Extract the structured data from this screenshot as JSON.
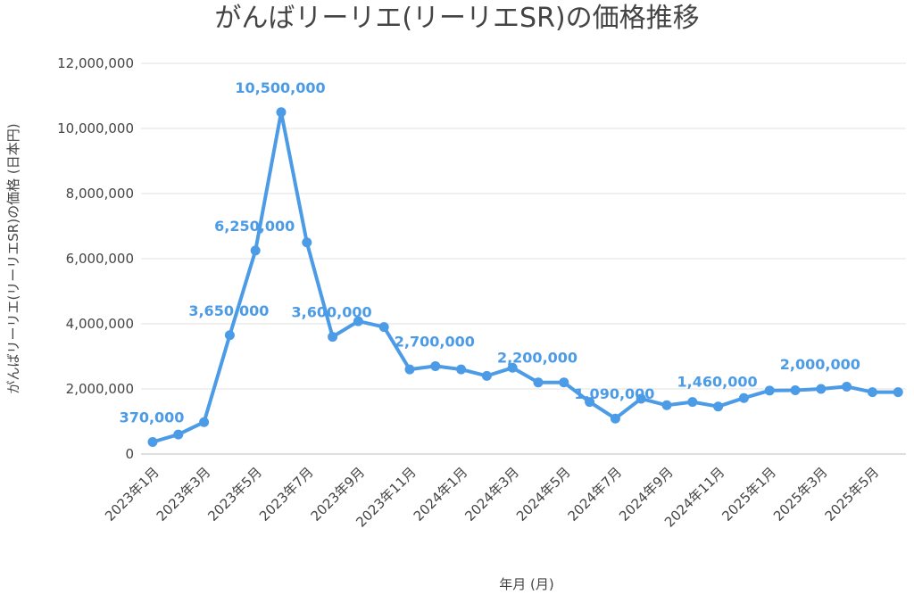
{
  "chart_data": {
    "type": "line",
    "title": "がんばリーリエ(リーリエSR)の価格推移",
    "xlabel": "年月 (月)",
    "ylabel": "がんばリーリエ(リーリエSR)の価格 (日本円)",
    "ylim": [
      0,
      12000000
    ],
    "y_ticks": [
      "0",
      "2,000,000",
      "4,000,000",
      "6,000,000",
      "8,000,000",
      "10,000,000",
      "12,000,000"
    ],
    "grid": true,
    "legend": "none",
    "color": "#4c9be6",
    "x": [
      "2023年1月",
      "2023年2月",
      "2023年3月",
      "2023年4月",
      "2023年5月",
      "2023年6月",
      "2023年7月",
      "2023年8月",
      "2023年9月",
      "2023年10月",
      "2023年11月",
      "2023年12月",
      "2024年1月",
      "2024年2月",
      "2024年3月",
      "2024年4月",
      "2024年5月",
      "2024年6月",
      "2024年7月",
      "2024年8月",
      "2024年9月",
      "2024年10月",
      "2024年11月",
      "2024年12月",
      "2025年1月",
      "2025年2月",
      "2025年3月",
      "2025年4月",
      "2025年5月",
      "2025年6月"
    ],
    "x_tick_labels": [
      "2023年1月",
      "2023年3月",
      "2023年5月",
      "2023年7月",
      "2023年9月",
      "2023年11月",
      "2024年1月",
      "2024年3月",
      "2024年5月",
      "2024年7月",
      "2024年9月",
      "2024年11月",
      "2025年1月",
      "2025年3月",
      "2025年5月"
    ],
    "values": [
      370000,
      600000,
      980000,
      3650000,
      6250000,
      10500000,
      6500000,
      3600000,
      4080000,
      3900000,
      2600000,
      2700000,
      2600000,
      2400000,
      2650000,
      2200000,
      2200000,
      1600000,
      1090000,
      1700000,
      1500000,
      1600000,
      1460000,
      1720000,
      1950000,
      1960000,
      2000000,
      2070000,
      1900000,
      1900000
    ],
    "data_labels": [
      {
        "index": 0,
        "text": "370,000"
      },
      {
        "index": 3,
        "text": "3,650,000"
      },
      {
        "index": 4,
        "text": "6,250,000"
      },
      {
        "index": 5,
        "text": "10,500,000"
      },
      {
        "index": 7,
        "text": "3,600,000"
      },
      {
        "index": 11,
        "text": "2,700,000"
      },
      {
        "index": 15,
        "text": "2,200,000"
      },
      {
        "index": 18,
        "text": "1,090,000"
      },
      {
        "index": 22,
        "text": "1,460,000"
      },
      {
        "index": 26,
        "text": "2,000,000"
      }
    ]
  }
}
